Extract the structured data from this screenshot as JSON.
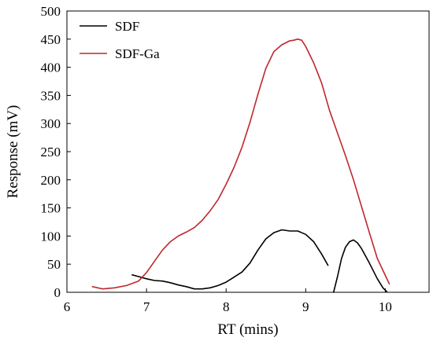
{
  "chart_data": {
    "type": "line",
    "xlabel": "RT (mins)",
    "ylabel": "Response (mV)",
    "xlim": [
      6,
      10.55
    ],
    "ylim": [
      0,
      500
    ],
    "x_ticks": [
      6,
      7,
      8,
      9,
      10
    ],
    "y_ticks": [
      0,
      50,
      100,
      150,
      200,
      250,
      300,
      350,
      400,
      450,
      500
    ],
    "grid": false,
    "legend_position": "top-left",
    "series": [
      {
        "name": "SDF",
        "color": "#000000",
        "segments": [
          [
            [
              6.82,
              31
            ],
            [
              6.9,
              28
            ],
            [
              7.0,
              24
            ],
            [
              7.1,
              21
            ],
            [
              7.2,
              20
            ],
            [
              7.3,
              17
            ],
            [
              7.4,
              13
            ],
            [
              7.5,
              10
            ],
            [
              7.6,
              6
            ],
            [
              7.7,
              6
            ],
            [
              7.8,
              8
            ],
            [
              7.9,
              12
            ],
            [
              8.0,
              18
            ],
            [
              8.1,
              27
            ],
            [
              8.2,
              36
            ],
            [
              8.3,
              52
            ],
            [
              8.4,
              75
            ],
            [
              8.5,
              95
            ],
            [
              8.6,
              106
            ],
            [
              8.7,
              111
            ],
            [
              8.8,
              109
            ],
            [
              8.9,
              109
            ],
            [
              9.0,
              103
            ],
            [
              9.1,
              90
            ],
            [
              9.2,
              68
            ],
            [
              9.28,
              48
            ]
          ],
          [
            [
              9.35,
              0
            ],
            [
              9.4,
              28
            ],
            [
              9.45,
              60
            ],
            [
              9.5,
              80
            ],
            [
              9.55,
              90
            ],
            [
              9.6,
              93
            ],
            [
              9.65,
              88
            ],
            [
              9.7,
              78
            ],
            [
              9.8,
              52
            ],
            [
              9.9,
              24
            ],
            [
              9.97,
              8
            ],
            [
              10.02,
              1
            ]
          ]
        ]
      },
      {
        "name": "SDF-Ga",
        "color": "#c0272d",
        "segments": [
          [
            [
              6.32,
              10
            ],
            [
              6.45,
              6
            ],
            [
              6.6,
              8
            ],
            [
              6.75,
              12
            ],
            [
              6.9,
              20
            ],
            [
              7.0,
              35
            ],
            [
              7.1,
              55
            ],
            [
              7.2,
              75
            ],
            [
              7.3,
              90
            ],
            [
              7.4,
              100
            ],
            [
              7.5,
              107
            ],
            [
              7.6,
              115
            ],
            [
              7.7,
              128
            ],
            [
              7.8,
              145
            ],
            [
              7.9,
              165
            ],
            [
              8.0,
              192
            ],
            [
              8.1,
              222
            ],
            [
              8.2,
              258
            ],
            [
              8.3,
              302
            ],
            [
              8.4,
              352
            ],
            [
              8.5,
              398
            ],
            [
              8.6,
              428
            ],
            [
              8.7,
              440
            ],
            [
              8.8,
              447
            ],
            [
              8.85,
              448
            ],
            [
              8.9,
              450
            ],
            [
              8.95,
              448
            ],
            [
              9.0,
              437
            ],
            [
              9.1,
              408
            ],
            [
              9.2,
              372
            ],
            [
              9.3,
              323
            ],
            [
              9.4,
              283
            ],
            [
              9.5,
              243
            ],
            [
              9.6,
              200
            ],
            [
              9.7,
              153
            ],
            [
              9.8,
              106
            ],
            [
              9.9,
              60
            ],
            [
              10.0,
              30
            ],
            [
              10.05,
              15
            ]
          ]
        ]
      }
    ]
  }
}
